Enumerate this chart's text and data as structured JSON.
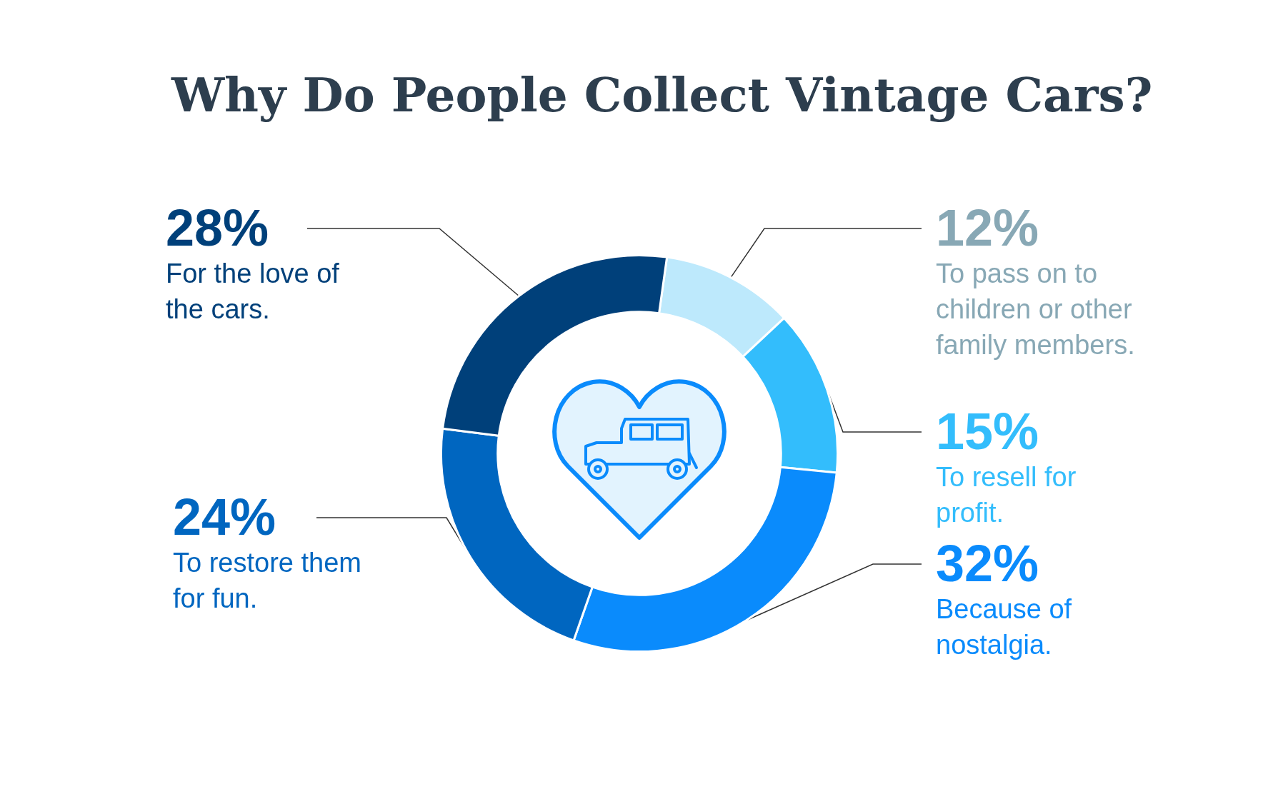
{
  "chart_data": {
    "type": "donut",
    "title": "Why Do People Collect Vintage Cars?",
    "categories": [
      "To pass on to children or other family members.",
      "To resell for profit.",
      "Because of nostalgia.",
      "To restore them for fun.",
      "For the love of the cars."
    ],
    "values": [
      12,
      15,
      32,
      24,
      28
    ],
    "value_labels": [
      "12%",
      "15%",
      "32%",
      "24%",
      "28%"
    ],
    "colors": [
      "#bde9fc",
      "#33bdfc",
      "#0a8bfc",
      "#0066c0",
      "#00407a"
    ]
  }
}
